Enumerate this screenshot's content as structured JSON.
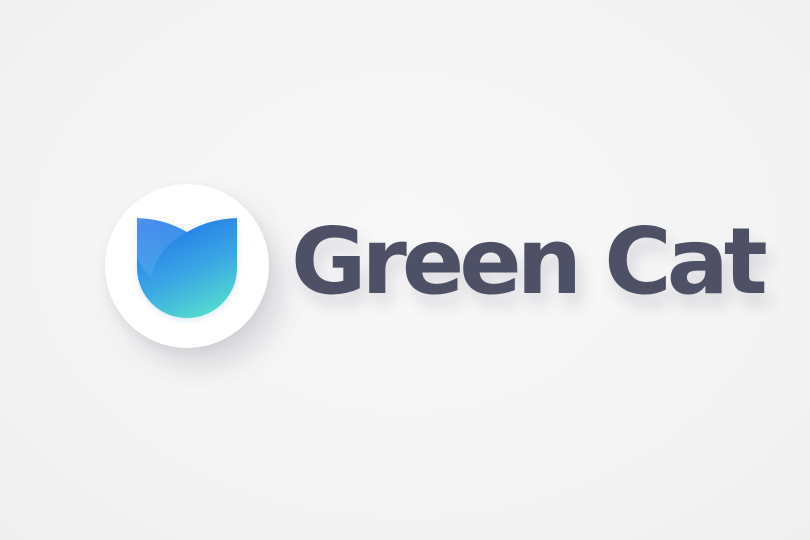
{
  "logo": {
    "icon": "cat-head-icon",
    "wordmark": "Green Cat"
  },
  "colors": {
    "background": "#f5f5f6",
    "badge": "#ffffff",
    "icon_gradient_top": "#1f78ea",
    "icon_gradient_bottom": "#52dccf",
    "wordmark": "#4e5066"
  }
}
